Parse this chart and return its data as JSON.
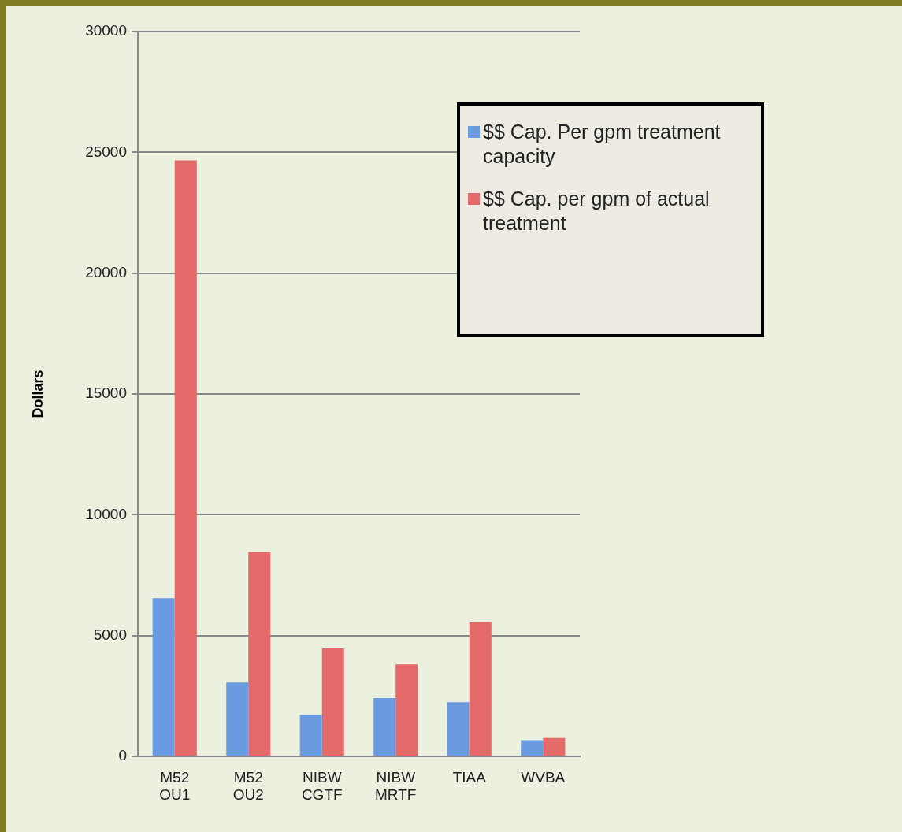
{
  "chart_data": {
    "type": "bar",
    "ylabel": "Dollars",
    "categories": [
      "M52 OU1",
      "M52 OU2",
      "NIBW CGTF",
      "NIBW MRTF",
      "TIAA",
      "WVBA"
    ],
    "series": [
      {
        "name": "$$ Cap. Per gpm treatment capacity",
        "color": "#6a9be0",
        "values": [
          6550,
          3060,
          1720,
          2410,
          2240,
          670
        ]
      },
      {
        "name": "$$ Cap. per gpm of actual treatment",
        "color": "#e46a6a",
        "values": [
          24670,
          8460,
          4470,
          3810,
          5540,
          760
        ]
      }
    ],
    "ylim": [
      0,
      30000
    ],
    "yticks": [
      0,
      5000,
      10000,
      15000,
      20000,
      25000,
      30000
    ],
    "grid": "y",
    "legend": "top right"
  }
}
